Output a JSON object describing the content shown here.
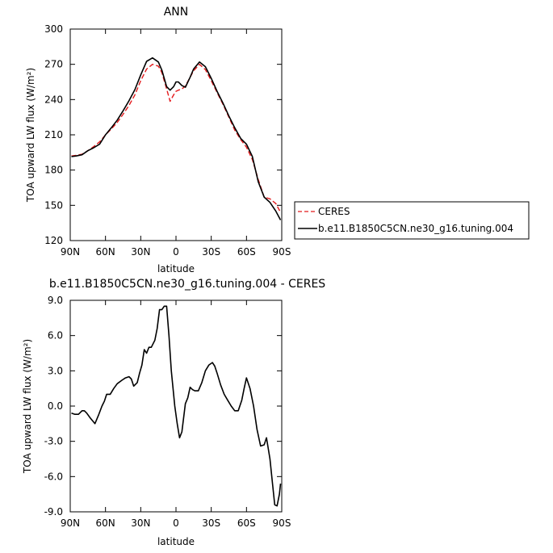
{
  "chart_data": [
    {
      "type": "line",
      "title": "ANN",
      "xlabel": "latitude",
      "ylabel": "TOA upward LW flux (W/m²)",
      "xlim": [
        90,
        -90
      ],
      "ylim": [
        120,
        300
      ],
      "xticks": [
        {
          "value": 90,
          "label": "90N"
        },
        {
          "value": 60,
          "label": "60N"
        },
        {
          "value": 30,
          "label": "30N"
        },
        {
          "value": 0,
          "label": "0"
        },
        {
          "value": -30,
          "label": "30S"
        },
        {
          "value": -60,
          "label": "60S"
        },
        {
          "value": -90,
          "label": "90S"
        }
      ],
      "yticks": [
        {
          "value": 120,
          "label": "120"
        },
        {
          "value": 150,
          "label": "150"
        },
        {
          "value": 180,
          "label": "180"
        },
        {
          "value": 210,
          "label": "210"
        },
        {
          "value": 240,
          "label": "240"
        },
        {
          "value": 270,
          "label": "270"
        },
        {
          "value": 300,
          "label": "300"
        }
      ],
      "legend_position": "right",
      "series": [
        {
          "name": "CERES",
          "color": "#e41a1c",
          "dash": "dashed",
          "x": [
            89,
            85,
            80,
            75,
            70,
            65,
            60,
            55,
            50,
            45,
            40,
            35,
            30,
            25,
            20,
            15,
            12,
            8,
            5,
            2,
            0,
            -2,
            -5,
            -8,
            -12,
            -15,
            -20,
            -25,
            -30,
            -35,
            -40,
            -45,
            -50,
            -55,
            -60,
            -65,
            -70,
            -75,
            -80,
            -85,
            -89
          ],
          "y": [
            192,
            192.5,
            193.5,
            196.5,
            200,
            204,
            210,
            215,
            220.5,
            227.5,
            235,
            244,
            256,
            266,
            270,
            268.5,
            263,
            249,
            238.5,
            244,
            247,
            248,
            249,
            251.5,
            259,
            264.5,
            270,
            265.5,
            256,
            246,
            236,
            225,
            214,
            206,
            199.5,
            189,
            172,
            157,
            155.5,
            151.5,
            144
          ]
        },
        {
          "name": "b.e11.B1850C5CN.ne30_g16.tuning.004",
          "color": "#000000",
          "dash": "solid",
          "x": [
            89,
            85,
            80,
            75,
            70,
            65,
            60,
            55,
            50,
            45,
            40,
            35,
            30,
            25,
            20,
            15,
            12,
            8,
            5,
            2,
            0,
            -2,
            -5,
            -8,
            -12,
            -15,
            -20,
            -25,
            -30,
            -35,
            -40,
            -45,
            -50,
            -55,
            -60,
            -65,
            -70,
            -75,
            -80,
            -85,
            -89
          ],
          "y": [
            191.5,
            192,
            193,
            196.5,
            199,
            202,
            210,
            216,
            222.5,
            230.5,
            239,
            248.5,
            261,
            272.5,
            275.5,
            272,
            265,
            251,
            248,
            251,
            255,
            255,
            252,
            250.5,
            259,
            266,
            272,
            268,
            258,
            247,
            237,
            226,
            216,
            207,
            202,
            191.5,
            170,
            157,
            152.5,
            145,
            137.5
          ]
        }
      ]
    },
    {
      "type": "line",
      "title": "b.e11.B1850C5CN.ne30_g16.tuning.004 - CERES",
      "xlabel": "latitude",
      "ylabel": "TOA upward LW flux (W/m²)",
      "xlim": [
        90,
        -90
      ],
      "ylim": [
        -9,
        9
      ],
      "xticks": [
        {
          "value": 90,
          "label": "90N"
        },
        {
          "value": 60,
          "label": "60N"
        },
        {
          "value": 30,
          "label": "30N"
        },
        {
          "value": 0,
          "label": "0"
        },
        {
          "value": -30,
          "label": "30S"
        },
        {
          "value": -60,
          "label": "60S"
        },
        {
          "value": -90,
          "label": "90S"
        }
      ],
      "yticks": [
        {
          "value": -9,
          "label": "-9.0"
        },
        {
          "value": -6,
          "label": "-6.0"
        },
        {
          "value": -3,
          "label": "-3.0"
        },
        {
          "value": 0,
          "label": "0.0"
        },
        {
          "value": 3,
          "label": "3.0"
        },
        {
          "value": 6,
          "label": "6.0"
        },
        {
          "value": 9,
          "label": "9.0"
        }
      ],
      "series": [
        {
          "color": "#000000",
          "dash": "solid",
          "x": [
            89,
            86,
            83,
            80,
            78,
            76,
            73,
            69,
            66,
            63,
            61,
            59,
            56,
            53,
            50,
            46,
            43,
            40,
            38,
            36,
            33,
            31,
            29,
            27,
            25,
            23,
            21,
            18,
            16,
            14,
            12,
            10,
            8,
            6,
            4,
            1,
            -1,
            -3,
            -5,
            -8,
            -10,
            -12,
            -14,
            -16,
            -19,
            -22,
            -25,
            -28,
            -31,
            -33,
            -35,
            -38,
            -41,
            -44,
            -47,
            -50,
            -53,
            -56,
            -58,
            -60,
            -63,
            -66,
            -69,
            -72,
            -75,
            -77,
            -80,
            -82,
            -84,
            -86,
            -88,
            -89
          ],
          "y": [
            -0.6,
            -0.7,
            -0.7,
            -0.4,
            -0.4,
            -0.6,
            -1.0,
            -1.5,
            -0.8,
            0.0,
            0.4,
            1.0,
            1.0,
            1.5,
            1.9,
            2.2,
            2.4,
            2.5,
            2.3,
            1.7,
            2.0,
            2.8,
            3.5,
            4.8,
            4.5,
            5.0,
            5.0,
            5.6,
            6.6,
            8.2,
            8.2,
            8.5,
            8.5,
            6.0,
            3.0,
            0.0,
            -1.5,
            -2.7,
            -2.2,
            0.2,
            0.7,
            1.6,
            1.4,
            1.3,
            1.3,
            2.0,
            3.0,
            3.5,
            3.7,
            3.4,
            2.8,
            1.8,
            1.0,
            0.5,
            0.0,
            -0.4,
            -0.4,
            0.5,
            1.5,
            2.4,
            1.5,
            0.0,
            -2.0,
            -3.4,
            -3.3,
            -2.7,
            -4.5,
            -6.5,
            -8.4,
            -8.5,
            -7.5,
            -6.6
          ]
        }
      ]
    }
  ]
}
